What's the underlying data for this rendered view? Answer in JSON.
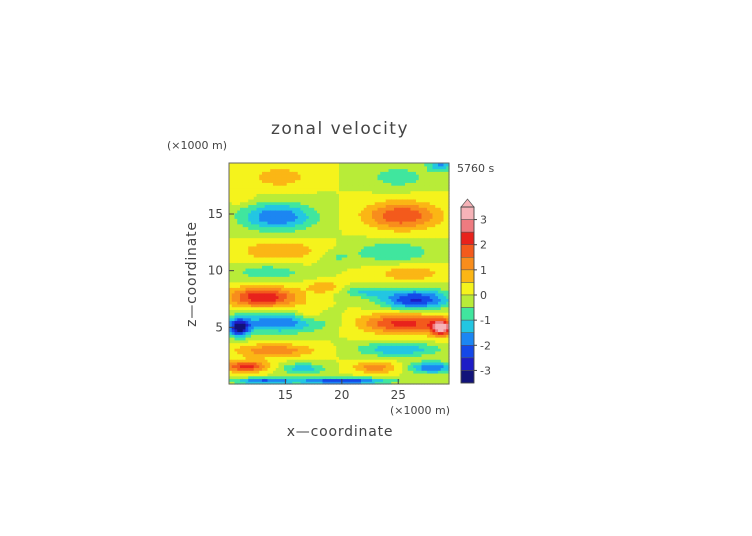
{
  "chart_data": {
    "type": "heatmap",
    "title": "zonal velocity",
    "time_label": "5760 s",
    "xlabel": "x—coordinate",
    "ylabel": "z—coordinate",
    "x_unit": "(×1000 m)",
    "y_unit": "(×1000 m)",
    "xlim": [
      10,
      29.5
    ],
    "ylim": [
      0,
      19.5
    ],
    "x_ticks": [
      15,
      20,
      25
    ],
    "y_ticks": [
      5,
      10,
      15
    ],
    "colorbar": {
      "ticks": [
        3,
        2,
        1,
        0,
        -1,
        -2,
        -3
      ],
      "range": [
        -3.5,
        3.5
      ],
      "levels": [
        {
          "lo": 3.0,
          "hi": 3.5,
          "color": "#f6b3b8"
        },
        {
          "lo": 2.5,
          "hi": 3.0,
          "color": "#ee7b80"
        },
        {
          "lo": 2.0,
          "hi": 2.5,
          "color": "#e8221c"
        },
        {
          "lo": 1.5,
          "hi": 2.0,
          "color": "#f35a1c"
        },
        {
          "lo": 1.0,
          "hi": 1.5,
          "color": "#f88d1c"
        },
        {
          "lo": 0.5,
          "hi": 1.0,
          "color": "#fbb615"
        },
        {
          "lo": 0.0,
          "hi": 0.5,
          "color": "#f5f31c"
        },
        {
          "lo": -0.5,
          "hi": 0.0,
          "color": "#b8ec38"
        },
        {
          "lo": -1.0,
          "hi": -0.5,
          "color": "#40e69e"
        },
        {
          "lo": -1.5,
          "hi": -1.0,
          "color": "#23c6e2"
        },
        {
          "lo": -2.0,
          "hi": -1.5,
          "color": "#1c86f2"
        },
        {
          "lo": -2.5,
          "hi": -2.0,
          "color": "#1448e8"
        },
        {
          "lo": -3.0,
          "hi": -2.5,
          "color": "#1e1cc6"
        },
        {
          "lo": -3.5,
          "hi": -3.0,
          "color": "#12137a"
        }
      ]
    },
    "field_blobs": [
      {
        "x": 14.5,
        "z": 18.3,
        "sx": 2.6,
        "sz": 1.0,
        "a": 0.8
      },
      {
        "x": 25.0,
        "z": 18.3,
        "sx": 2.6,
        "sz": 1.0,
        "a": -0.8
      },
      {
        "x": 28.8,
        "z": 19.5,
        "sx": 1.2,
        "sz": 0.7,
        "a": -1.6
      },
      {
        "x": 14.3,
        "z": 14.8,
        "sx": 3.2,
        "sz": 1.2,
        "a": -2.0
      },
      {
        "x": 25.3,
        "z": 14.9,
        "sx": 3.2,
        "sz": 1.2,
        "a": 2.0
      },
      {
        "x": 11.0,
        "z": 16.5,
        "sx": 1.0,
        "sz": 0.6,
        "a": 0.6
      },
      {
        "x": 14.5,
        "z": 11.8,
        "sx": 3.5,
        "sz": 0.9,
        "a": 1.0
      },
      {
        "x": 24.5,
        "z": 11.7,
        "sx": 3.5,
        "sz": 0.9,
        "a": -1.0
      },
      {
        "x": 19.5,
        "z": 11.2,
        "sx": 1.5,
        "sz": 0.6,
        "a": -0.5
      },
      {
        "x": 13.5,
        "z": 9.9,
        "sx": 3.0,
        "sz": 0.7,
        "a": -0.9
      },
      {
        "x": 26.0,
        "z": 9.8,
        "sx": 3.0,
        "sz": 0.7,
        "a": 0.9
      },
      {
        "x": 13.0,
        "z": 7.7,
        "sx": 3.0,
        "sz": 0.9,
        "a": 2.5
      },
      {
        "x": 26.5,
        "z": 7.5,
        "sx": 3.0,
        "sz": 0.9,
        "a": -2.6
      },
      {
        "x": 18.5,
        "z": 8.6,
        "sx": 1.5,
        "sz": 0.5,
        "a": 1.0
      },
      {
        "x": 22.0,
        "z": 8.2,
        "sx": 2.0,
        "sz": 0.5,
        "a": -1.0
      },
      {
        "x": 14.5,
        "z": 5.5,
        "sx": 3.8,
        "sz": 0.9,
        "a": -2.0
      },
      {
        "x": 25.5,
        "z": 5.4,
        "sx": 3.8,
        "sz": 0.9,
        "a": 2.2
      },
      {
        "x": 10.9,
        "z": 5.0,
        "sx": 0.9,
        "sz": 0.8,
        "a": -3.0
      },
      {
        "x": 28.8,
        "z": 5.0,
        "sx": 0.9,
        "sz": 0.7,
        "a": 3.0
      },
      {
        "x": 17.0,
        "z": 6.2,
        "sx": 1.2,
        "sz": 0.8,
        "a": 0.8
      },
      {
        "x": 14.0,
        "z": 3.0,
        "sx": 3.5,
        "sz": 0.6,
        "a": 1.4
      },
      {
        "x": 25.0,
        "z": 3.1,
        "sx": 3.5,
        "sz": 0.6,
        "a": -1.5
      },
      {
        "x": 11.5,
        "z": 1.6,
        "sx": 2.0,
        "sz": 0.5,
        "a": 2.2
      },
      {
        "x": 16.5,
        "z": 1.4,
        "sx": 2.0,
        "sz": 0.5,
        "a": -1.3
      },
      {
        "x": 23.0,
        "z": 1.5,
        "sx": 2.0,
        "sz": 0.5,
        "a": 1.3
      },
      {
        "x": 28.0,
        "z": 1.5,
        "sx": 2.0,
        "sz": 0.5,
        "a": -2.0
      },
      {
        "x": 20.0,
        "z": 0.3,
        "sx": 4.0,
        "sz": 0.3,
        "a": -2.5
      },
      {
        "x": 13.0,
        "z": 0.3,
        "sx": 2.5,
        "sz": 0.3,
        "a": -2.0
      }
    ]
  }
}
